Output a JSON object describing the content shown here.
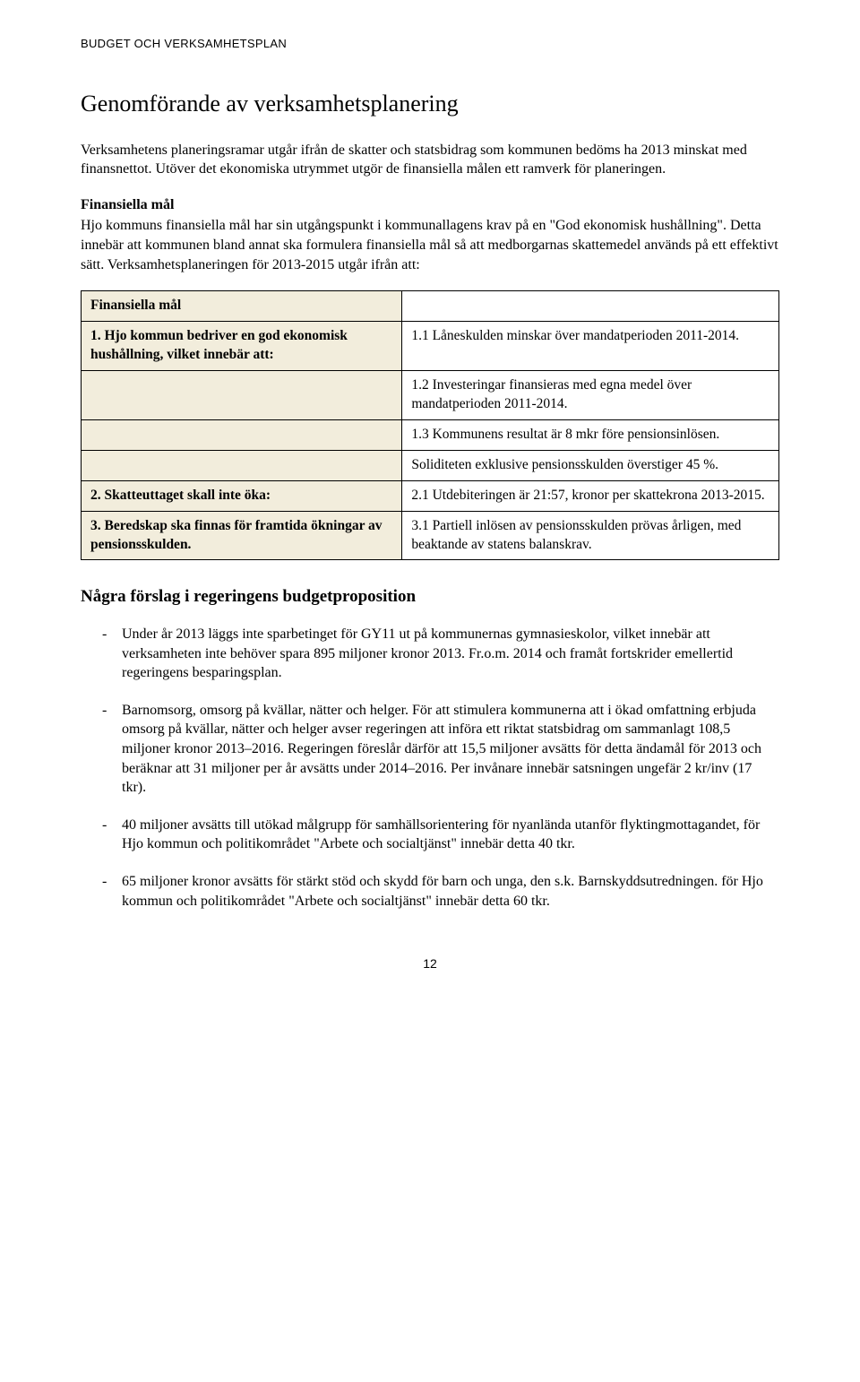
{
  "doc_header": "BUDGET OCH VERKSAMHETSPLAN",
  "main_heading": "Genomförande av verksamhetsplanering",
  "intro_para_1": "Verksamhetens planeringsramar utgår ifrån de skatter och statsbidrag som kommunen bedöms ha 2013 minskat med finansnettot. Utöver det ekonomiska utrymmet utgör de finansiella målen ett ramverk för planeringen.",
  "fin_heading": "Finansiella mål",
  "intro_para_2": "Hjo kommuns finansiella mål har sin utgångspunkt i kommunallagens krav på en \"God ekonomisk hushållning\". Detta innebär att kommunen bland annat ska formulera finansiella mål så att medborgarnas skattemedel används på ett effektivt sätt. Verksamhetsplaneringen för 2013-2015 utgår ifrån att:",
  "table": {
    "header_left": "Finansiella mål",
    "rows": [
      {
        "left": "1. Hjo kommun bedriver en god ekonomisk hushållning, vilket innebär att:",
        "right": "1.1 Låneskulden minskar över mandatperioden 2011-2014."
      },
      {
        "left": "",
        "right": "1.2 Investeringar finansieras med egna medel över mandatperioden 2011-2014."
      },
      {
        "left": "",
        "right": "1.3 Kommunens resultat är 8 mkr före pensionsinlösen."
      },
      {
        "left": "",
        "right": "Soliditeten exklusive pensionsskulden överstiger 45 %."
      },
      {
        "left": "2. Skatteuttaget skall inte öka:",
        "right": "2.1 Utdebiteringen är 21:57, kronor per skattekrona 2013-2015."
      },
      {
        "left": "3. Beredskap ska finnas för framtida ökningar av pensionsskulden.",
        "right": "3.1 Partiell inlösen av pensionsskulden prövas årligen, med beaktande av statens balanskrav."
      }
    ]
  },
  "prop_heading": "Några förslag i regeringens budgetproposition",
  "bullets": [
    "Under år 2013 läggs inte sparbetinget för GY11 ut på kommunernas gymnasieskolor, vilket innebär att verksamheten inte behöver spara 895 miljoner kronor 2013. Fr.o.m. 2014 och framåt fortskrider emellertid regeringens besparingsplan.",
    "Barnomsorg, omsorg på kvällar, nätter och helger. För att stimulera kommunerna att i ökad omfattning erbjuda omsorg på kvällar, nätter och helger avser regeringen att införa ett riktat statsbidrag om sammanlagt 108,5 miljoner kronor 2013–2016. Regeringen föreslår därför att 15,5 miljoner avsätts för detta ändamål för 2013 och beräknar att 31 miljoner per år avsätts under 2014–2016. Per invånare innebär satsningen ungefär 2 kr/inv (17 tkr).",
    "40 miljoner avsätts till utökad målgrupp för samhällsorientering för nyanlända utanför flyktingmottagandet, för Hjo kommun och politikområdet \"Arbete och socialtjänst\" innebär detta 40 tkr.",
    "65 miljoner kronor avsätts för stärkt stöd och skydd för barn och unga, den s.k. Barnskyddsutredningen. för Hjo kommun och politikområdet \"Arbete och socialtjänst\" innebär detta 60 tkr."
  ],
  "page_number": "12"
}
